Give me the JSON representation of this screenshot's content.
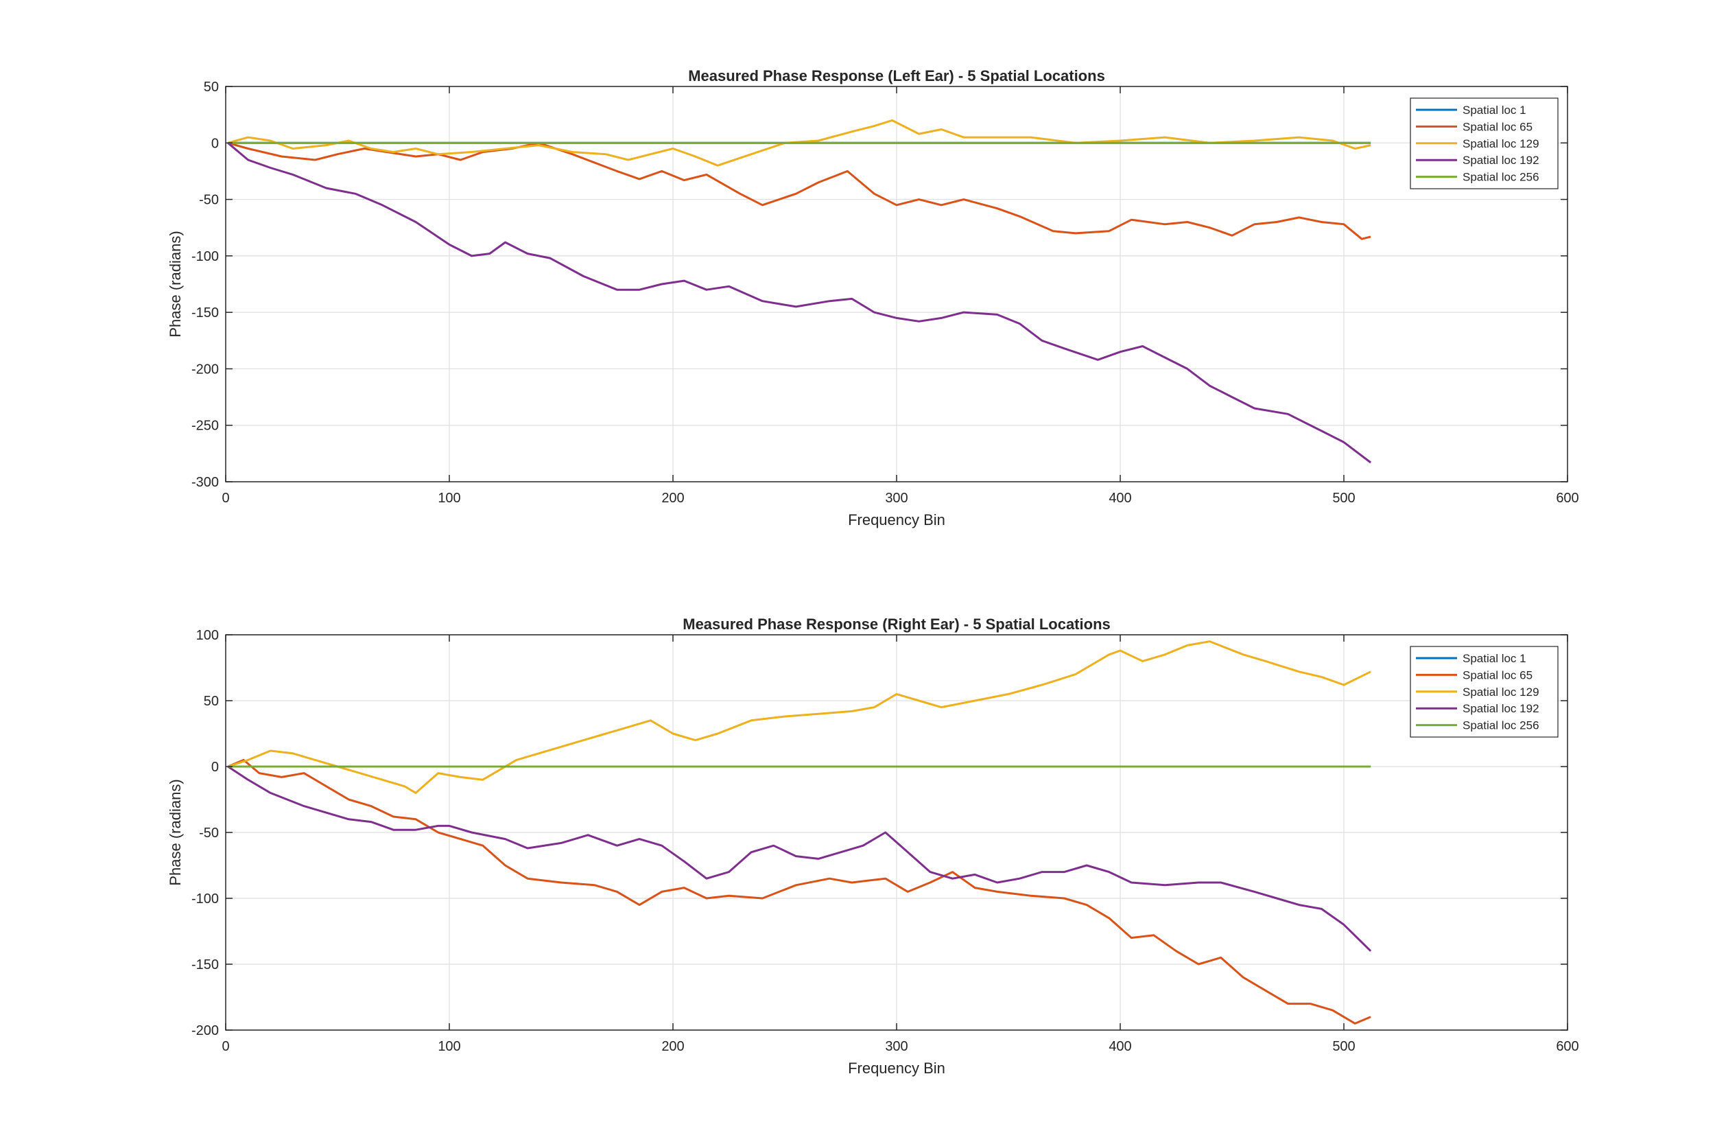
{
  "figure": {
    "background": "#ffffff"
  },
  "chart_data": [
    {
      "type": "line",
      "title": "Measured Phase Response (Left Ear) - 5 Spatial Locations",
      "xlabel": "Frequency Bin",
      "ylabel": "Phase (radians)",
      "xlim": [
        0,
        600
      ],
      "ylim": [
        -300,
        50
      ],
      "xticks": [
        0,
        100,
        200,
        300,
        400,
        500,
        600
      ],
      "yticks": [
        -300,
        -250,
        -200,
        -150,
        -100,
        -50,
        0,
        50
      ],
      "grid": true,
      "legend_position": "top-right",
      "series": [
        {
          "name": "Spatial loc 1",
          "color": "#0072BD",
          "x": [
            1,
            512
          ],
          "y": [
            0,
            0
          ]
        },
        {
          "name": "Spatial loc 65",
          "color": "#D95319",
          "x": [
            1,
            10,
            25,
            40,
            50,
            62,
            72,
            85,
            95,
            105,
            115,
            128,
            140,
            155,
            175,
            185,
            195,
            205,
            215,
            230,
            240,
            255,
            265,
            278,
            290,
            300,
            310,
            320,
            330,
            345,
            355,
            370,
            380,
            395,
            405,
            420,
            430,
            440,
            450,
            460,
            470,
            480,
            490,
            500,
            508,
            512
          ],
          "y": [
            0,
            -5,
            -12,
            -15,
            -10,
            -5,
            -8,
            -12,
            -10,
            -15,
            -8,
            -5,
            0,
            -10,
            -25,
            -32,
            -25,
            -33,
            -28,
            -45,
            -55,
            -45,
            -35,
            -25,
            -45,
            -55,
            -50,
            -55,
            -50,
            -58,
            -65,
            -78,
            -80,
            -78,
            -68,
            -72,
            -70,
            -75,
            -82,
            -72,
            -70,
            -66,
            -70,
            -72,
            -85,
            -83
          ]
        },
        {
          "name": "Spatial loc 129",
          "color": "#EDB120",
          "x": [
            1,
            10,
            20,
            30,
            45,
            55,
            65,
            75,
            85,
            95,
            110,
            125,
            140,
            155,
            170,
            180,
            190,
            200,
            210,
            220,
            235,
            250,
            265,
            280,
            290,
            298,
            310,
            320,
            330,
            345,
            360,
            380,
            400,
            420,
            440,
            460,
            480,
            495,
            505,
            512
          ],
          "y": [
            0,
            5,
            2,
            -5,
            -2,
            2,
            -5,
            -8,
            -5,
            -10,
            -8,
            -5,
            -2,
            -8,
            -10,
            -15,
            -10,
            -5,
            -12,
            -20,
            -10,
            0,
            2,
            10,
            15,
            20,
            8,
            12,
            5,
            5,
            5,
            0,
            2,
            5,
            0,
            2,
            5,
            2,
            -5,
            -2
          ]
        },
        {
          "name": "Spatial loc 192",
          "color": "#7E2F8E",
          "x": [
            1,
            10,
            20,
            30,
            45,
            58,
            70,
            85,
            100,
            110,
            118,
            125,
            135,
            145,
            160,
            175,
            185,
            195,
            205,
            215,
            225,
            240,
            255,
            270,
            280,
            290,
            300,
            310,
            320,
            330,
            345,
            355,
            365,
            375,
            390,
            400,
            410,
            420,
            430,
            440,
            450,
            460,
            475,
            490,
            500,
            512
          ],
          "y": [
            0,
            -15,
            -22,
            -28,
            -40,
            -45,
            -55,
            -70,
            -90,
            -100,
            -98,
            -88,
            -98,
            -102,
            -118,
            -130,
            -130,
            -125,
            -122,
            -130,
            -127,
            -140,
            -145,
            -140,
            -138,
            -150,
            -155,
            -158,
            -155,
            -150,
            -152,
            -160,
            -175,
            -182,
            -192,
            -185,
            -180,
            -190,
            -200,
            -215,
            -225,
            -235,
            -240,
            -255,
            -265,
            -283
          ]
        },
        {
          "name": "Spatial loc 256",
          "color": "#77AC30",
          "x": [
            1,
            512
          ],
          "y": [
            0,
            0
          ]
        }
      ]
    },
    {
      "type": "line",
      "title": "Measured Phase Response (Right Ear) - 5 Spatial Locations",
      "xlabel": "Frequency Bin",
      "ylabel": "Phase (radians)",
      "xlim": [
        0,
        600
      ],
      "ylim": [
        -200,
        100
      ],
      "xticks": [
        0,
        100,
        200,
        300,
        400,
        500,
        600
      ],
      "yticks": [
        -200,
        -150,
        -100,
        -50,
        0,
        50,
        100
      ],
      "grid": true,
      "legend_position": "top-right",
      "series": [
        {
          "name": "Spatial loc 1",
          "color": "#0072BD",
          "x": [
            1,
            512
          ],
          "y": [
            0,
            0
          ]
        },
        {
          "name": "Spatial loc 65",
          "color": "#D95319",
          "x": [
            1,
            8,
            15,
            25,
            35,
            45,
            55,
            65,
            75,
            85,
            95,
            105,
            115,
            125,
            135,
            150,
            165,
            175,
            185,
            195,
            205,
            215,
            225,
            240,
            255,
            270,
            280,
            295,
            305,
            315,
            325,
            335,
            345,
            360,
            375,
            385,
            395,
            405,
            415,
            425,
            435,
            445,
            455,
            465,
            475,
            485,
            495,
            505,
            512
          ],
          "y": [
            0,
            5,
            -5,
            -8,
            -5,
            -15,
            -25,
            -30,
            -38,
            -40,
            -50,
            -55,
            -60,
            -75,
            -85,
            -88,
            -90,
            -95,
            -105,
            -95,
            -92,
            -100,
            -98,
            -100,
            -90,
            -85,
            -88,
            -85,
            -95,
            -88,
            -80,
            -92,
            -95,
            -98,
            -100,
            -105,
            -115,
            -130,
            -128,
            -140,
            -150,
            -145,
            -160,
            -170,
            -180,
            -180,
            -185,
            -195,
            -190
          ]
        },
        {
          "name": "Spatial loc 129",
          "color": "#EDB120",
          "x": [
            1,
            10,
            20,
            30,
            40,
            50,
            60,
            70,
            80,
            85,
            95,
            105,
            115,
            120,
            130,
            140,
            150,
            160,
            170,
            180,
            190,
            200,
            210,
            220,
            235,
            250,
            265,
            280,
            290,
            300,
            310,
            320,
            335,
            350,
            365,
            380,
            385,
            395,
            400,
            410,
            420,
            430,
            440,
            455,
            465,
            480,
            490,
            500,
            512
          ],
          "y": [
            0,
            5,
            12,
            10,
            5,
            0,
            -5,
            -10,
            -15,
            -20,
            -5,
            -8,
            -10,
            -5,
            5,
            10,
            15,
            20,
            25,
            30,
            35,
            25,
            20,
            25,
            35,
            38,
            40,
            42,
            45,
            55,
            50,
            45,
            50,
            55,
            62,
            70,
            75,
            85,
            88,
            80,
            85,
            92,
            95,
            85,
            80,
            72,
            68,
            62,
            72
          ]
        },
        {
          "name": "Spatial loc 192",
          "color": "#7E2F8E",
          "x": [
            1,
            10,
            20,
            35,
            45,
            55,
            65,
            75,
            85,
            95,
            100,
            110,
            125,
            135,
            150,
            162,
            175,
            185,
            195,
            205,
            215,
            225,
            235,
            245,
            255,
            265,
            275,
            285,
            295,
            305,
            315,
            325,
            335,
            345,
            355,
            365,
            375,
            385,
            395,
            405,
            420,
            435,
            445,
            460,
            470,
            480,
            490,
            500,
            512
          ],
          "y": [
            0,
            -10,
            -20,
            -30,
            -35,
            -40,
            -42,
            -48,
            -48,
            -45,
            -45,
            -50,
            -55,
            -62,
            -58,
            -52,
            -60,
            -55,
            -60,
            -72,
            -85,
            -80,
            -65,
            -60,
            -68,
            -70,
            -65,
            -60,
            -50,
            -65,
            -80,
            -85,
            -82,
            -88,
            -85,
            -80,
            -80,
            -75,
            -80,
            -88,
            -90,
            -88,
            -88,
            -95,
            -100,
            -105,
            -108,
            -120,
            -140
          ]
        },
        {
          "name": "Spatial loc 256",
          "color": "#77AC30",
          "x": [
            1,
            512
          ],
          "y": [
            0,
            0
          ]
        }
      ]
    }
  ]
}
